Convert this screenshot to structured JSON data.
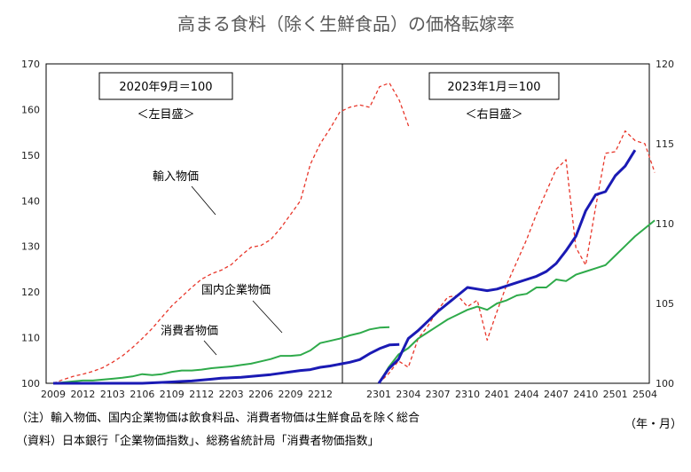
{
  "chart_title": "高まる食料（除く生鮮食品）の価格転嫁率",
  "notes": {
    "note1": "（注）輸入物価、国内企業物価は飲食料品、消費者物価は生鮮食品を除く総合",
    "note2": "（資料）日本銀行「企業物価指数」、総務省統計局「消費者物価指数」",
    "unit": "（年・月）"
  },
  "colors": {
    "import": "#e8362a",
    "domestic": "#2eaa4a",
    "consumer": "#1a1ab4"
  },
  "chart_data": [
    {
      "type": "line",
      "panel": "left",
      "base_label": "2020年9月＝100",
      "axis_note": "＜左目盛＞",
      "ylim": [
        100,
        170
      ],
      "yticks": [
        "100",
        "110",
        "120",
        "130",
        "140",
        "150",
        "160",
        "170"
      ],
      "xticks": [
        "2009",
        "2012",
        "2103",
        "2106",
        "2109",
        "2112",
        "2203",
        "2206",
        "2209",
        "2212"
      ],
      "x_range": [
        "2020-09",
        "2022-12"
      ],
      "series": [
        {
          "name": "輸入物価",
          "style": "dashed",
          "color": "#e8362a",
          "values": [
            100.0,
            100.8,
            101.5,
            102.0,
            102.6,
            103.4,
            104.6,
            106.0,
            107.8,
            109.8,
            112.0,
            114.5,
            117.0,
            119.0,
            121.0,
            122.8,
            124.0,
            124.8,
            126.0,
            128.0,
            129.8,
            130.2,
            131.5,
            134.0,
            137.0,
            140.0,
            148.0,
            152.5,
            155.8,
            159.5,
            160.5,
            161.0,
            160.5,
            165.0,
            165.8,
            162.0,
            156.0
          ]
        },
        {
          "name": "国内企業物価",
          "style": "solid",
          "color": "#2eaa4a",
          "values": [
            100.0,
            100.2,
            100.4,
            100.6,
            100.6,
            100.8,
            101.0,
            101.2,
            101.5,
            102.0,
            101.8,
            102.0,
            102.5,
            102.8,
            102.8,
            103.0,
            103.3,
            103.5,
            103.7,
            104.0,
            104.3,
            104.8,
            105.3,
            106.0,
            106.0,
            106.2,
            107.2,
            108.8,
            109.3,
            109.8,
            110.5,
            111.0,
            111.8,
            112.2,
            112.3
          ]
        },
        {
          "name": "消費者物価",
          "style": "solid",
          "color": "#1a1ab4",
          "values": [
            100.0,
            100.0,
            100.0,
            100.0,
            100.0,
            100.0,
            100.0,
            100.0,
            100.0,
            100.0,
            100.1,
            100.2,
            100.3,
            100.4,
            100.5,
            100.7,
            100.9,
            101.1,
            101.2,
            101.3,
            101.5,
            101.7,
            101.9,
            102.2,
            102.5,
            102.8,
            103.0,
            103.5,
            103.8,
            104.2,
            104.6,
            105.2,
            106.5,
            107.6,
            108.4,
            108.5
          ]
        }
      ]
    },
    {
      "type": "line",
      "panel": "right",
      "base_label": "2023年1月＝100",
      "axis_note": "＜右目盛＞",
      "ylim": [
        100,
        120
      ],
      "yticks": [
        "100",
        "105",
        "110",
        "115",
        "120"
      ],
      "xticks": [
        "2301",
        "2304",
        "2307",
        "2310",
        "2401",
        "2404",
        "2407",
        "2410",
        "2501",
        "2504"
      ],
      "x_range": [
        "2023-01",
        "2025-04"
      ],
      "series": [
        {
          "name": "輸入物価",
          "style": "dashed",
          "color": "#e8362a",
          "values": [
            100.0,
            100.6,
            101.4,
            101.0,
            102.8,
            103.6,
            104.6,
            105.4,
            105.5,
            104.8,
            105.2,
            102.7,
            104.5,
            106.2,
            107.6,
            109.0,
            110.6,
            112.0,
            113.4,
            114.0,
            108.5,
            107.4,
            111.0,
            114.4,
            114.5,
            115.8,
            115.2,
            115.0,
            113.2
          ]
        },
        {
          "name": "国内企業物価",
          "style": "solid",
          "color": "#2eaa4a",
          "values": [
            100.0,
            101.0,
            101.8,
            102.2,
            102.8,
            103.2,
            103.6,
            104.0,
            104.3,
            104.6,
            104.8,
            104.6,
            105.0,
            105.2,
            105.5,
            105.6,
            106.0,
            106.0,
            106.5,
            106.4,
            106.8,
            107.0,
            107.2,
            107.4,
            108.0,
            108.6,
            109.2,
            109.7,
            110.2
          ]
        },
        {
          "name": "消費者物価",
          "style": "solid",
          "color": "#1a1ab4",
          "values": [
            100.0,
            100.9,
            101.5,
            102.8,
            103.3,
            103.9,
            104.5,
            105.0,
            105.5,
            106.0,
            105.9,
            105.8,
            105.9,
            106.1,
            106.3,
            106.5,
            106.7,
            107.0,
            107.5,
            108.3,
            109.2,
            110.8,
            111.8,
            112.0,
            113.0,
            113.6,
            114.6
          ]
        }
      ]
    }
  ],
  "annotations": {
    "import_label": "輸入物価",
    "domestic_label": "国内企業物価",
    "consumer_label": "消費者物価"
  }
}
